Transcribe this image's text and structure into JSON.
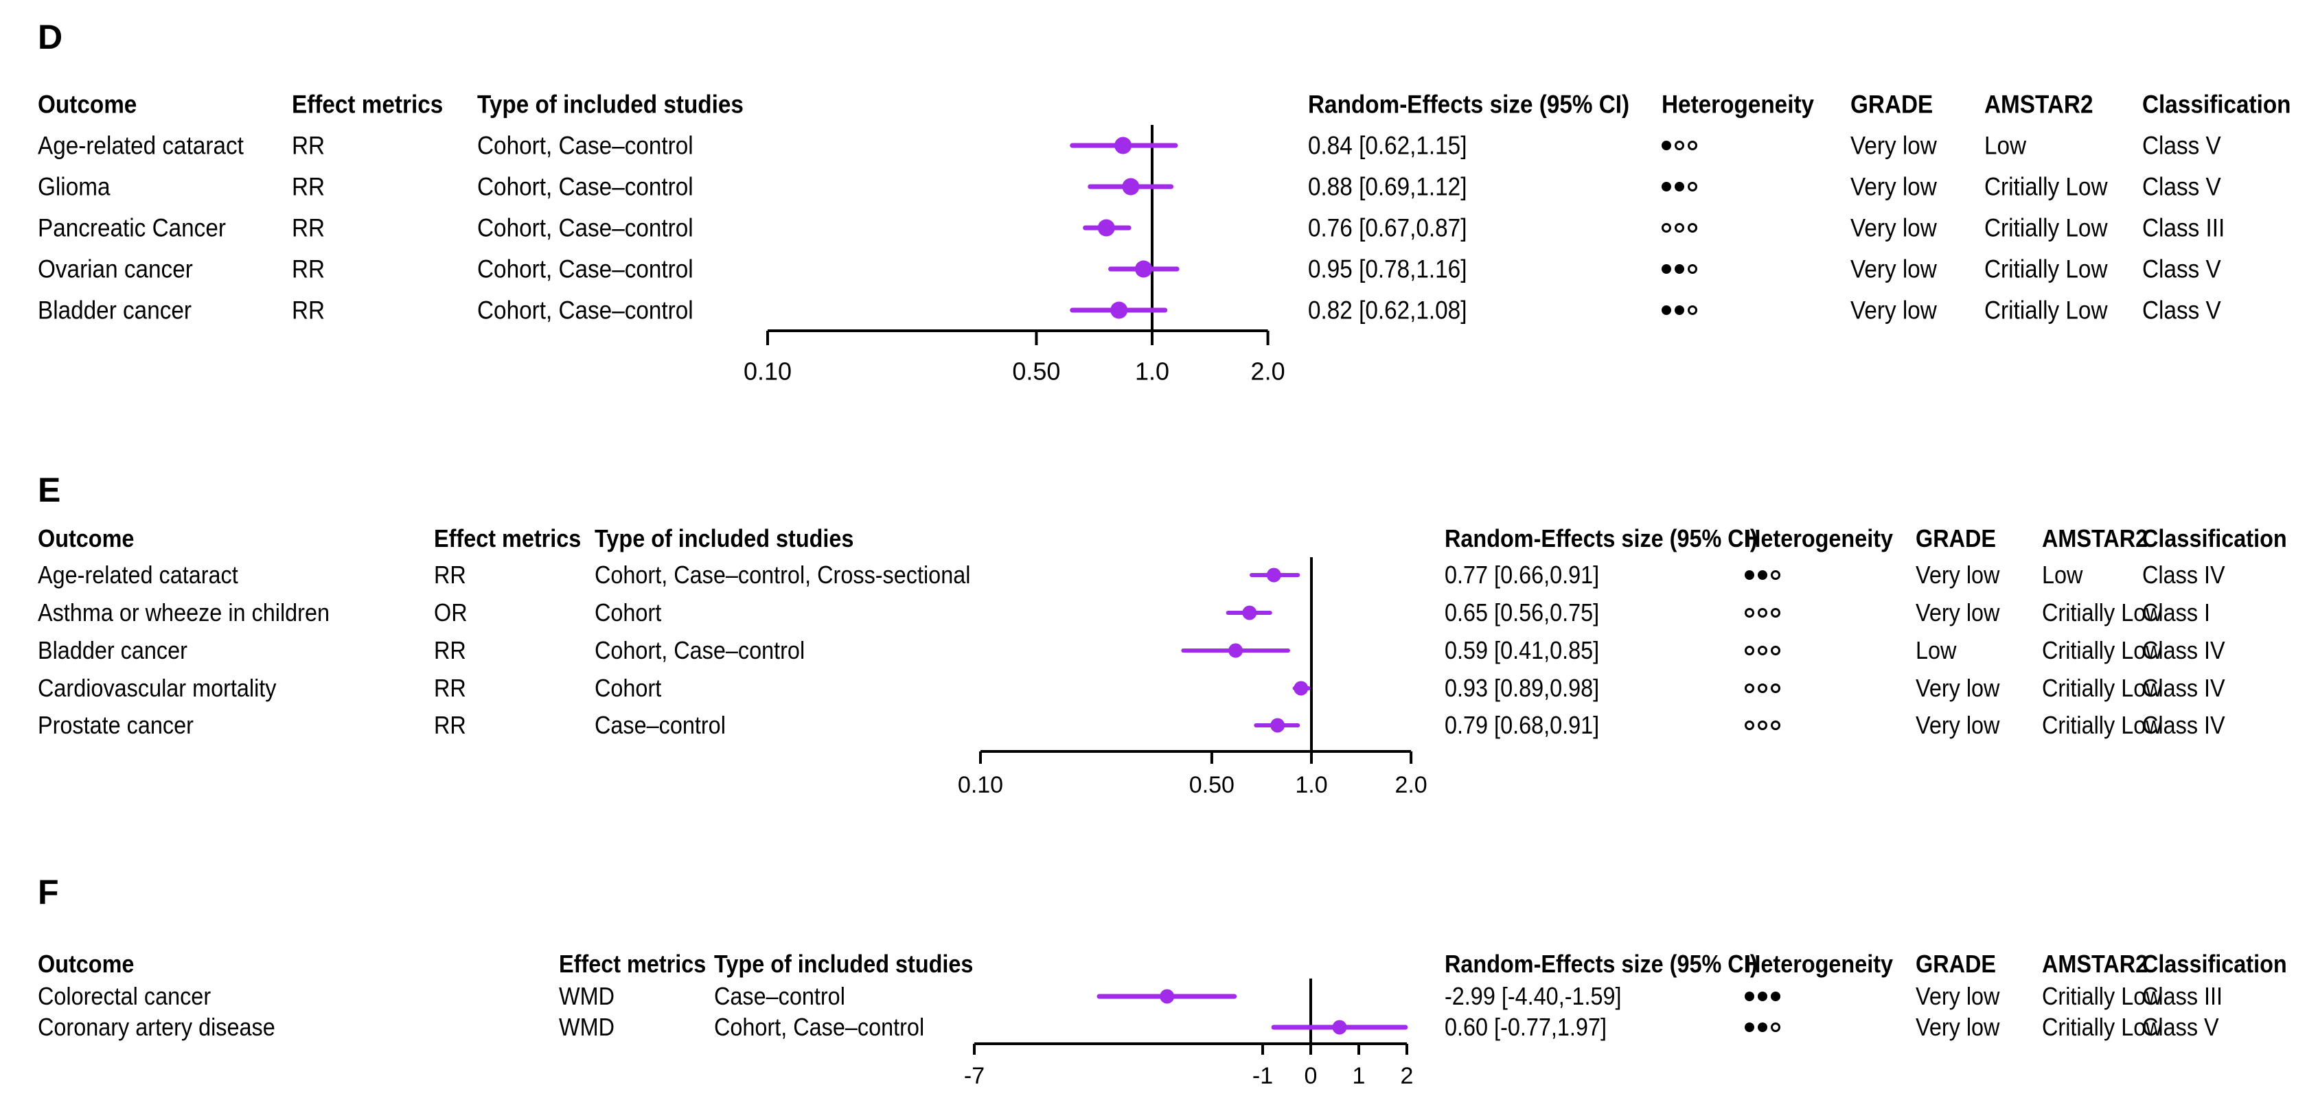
{
  "colors": {
    "marker": "#A02BE8",
    "text": "#000000"
  },
  "chart_data": [
    {
      "type": "forest",
      "panel": "D",
      "scale": "log",
      "axis_ticks": [
        "0.10",
        "0.50",
        "1.0",
        "2.0"
      ],
      "axis_tick_values": [
        0.1,
        0.5,
        1.0,
        2.0
      ],
      "ref_line": 1.0,
      "headers": {
        "outcome": "Outcome",
        "effect": "Effect metrics",
        "types": "Type of included studies",
        "re": "Random-Effects size (95% CI)",
        "het": "Heterogeneity",
        "grade": "GRADE",
        "amstar": "AMSTAR2",
        "class": "Classification"
      },
      "rows": [
        {
          "outcome": "Age-related cataract",
          "effect": "RR",
          "types": "Cohort, Case–control",
          "estimate": 0.84,
          "ci_low": 0.62,
          "ci_high": 1.15,
          "re": "0.84 [0.62,1.15]",
          "het": "●○○",
          "grade": "Very low",
          "amstar": "Low",
          "class": "Class V"
        },
        {
          "outcome": "Glioma",
          "effect": "RR",
          "types": "Cohort, Case–control",
          "estimate": 0.88,
          "ci_low": 0.69,
          "ci_high": 1.12,
          "re": "0.88 [0.69,1.12]",
          "het": "●●○",
          "grade": "Very low",
          "amstar": "Critially Low",
          "class": "Class V"
        },
        {
          "outcome": "Pancreatic Cancer",
          "effect": "RR",
          "types": "Cohort, Case–control",
          "estimate": 0.76,
          "ci_low": 0.67,
          "ci_high": 0.87,
          "re": "0.76 [0.67,0.87]",
          "het": "○○○",
          "grade": "Very low",
          "amstar": "Critially Low",
          "class": "Class III"
        },
        {
          "outcome": "Ovarian cancer",
          "effect": "RR",
          "types": "Cohort, Case–control",
          "estimate": 0.95,
          "ci_low": 0.78,
          "ci_high": 1.16,
          "re": "0.95 [0.78,1.16]",
          "het": "●●○",
          "grade": "Very low",
          "amstar": "Critially Low",
          "class": "Class V"
        },
        {
          "outcome": "Bladder cancer",
          "effect": "RR",
          "types": "Cohort, Case–control",
          "estimate": 0.82,
          "ci_low": 0.62,
          "ci_high": 1.08,
          "re": "0.82 [0.62,1.08]",
          "het": "●●○",
          "grade": "Very low",
          "amstar": "Critially Low",
          "class": "Class V"
        }
      ]
    },
    {
      "type": "forest",
      "panel": "E",
      "scale": "log",
      "axis_ticks": [
        "0.10",
        "0.50",
        "1.0",
        "2.0"
      ],
      "axis_tick_values": [
        0.1,
        0.5,
        1.0,
        2.0
      ],
      "ref_line": 1.0,
      "headers": {
        "outcome": "Outcome",
        "effect": "Effect metrics",
        "types": "Type of included studies",
        "re": "Random-Effects size (95% CI)",
        "het": "Heterogeneity",
        "grade": "GRADE",
        "amstar": "AMSTAR2",
        "class": "Classification"
      },
      "rows": [
        {
          "outcome": "Age-related cataract",
          "effect": "RR",
          "types": "Cohort, Case–control, Cross-sectional",
          "estimate": 0.77,
          "ci_low": 0.66,
          "ci_high": 0.91,
          "re": "0.77 [0.66,0.91]",
          "het": "●●○",
          "grade": "Very low",
          "amstar": "Low",
          "class": "Class IV"
        },
        {
          "outcome": "Asthma or wheeze in children",
          "effect": "OR",
          "types": "Cohort",
          "estimate": 0.65,
          "ci_low": 0.56,
          "ci_high": 0.75,
          "re": "0.65 [0.56,0.75]",
          "het": "○○○",
          "grade": "Very low",
          "amstar": "Critially Low",
          "class": "Class I"
        },
        {
          "outcome": "Bladder cancer",
          "effect": "RR",
          "types": "Cohort, Case–control",
          "estimate": 0.59,
          "ci_low": 0.41,
          "ci_high": 0.85,
          "re": "0.59 [0.41,0.85]",
          "het": "○○○",
          "grade": "Low",
          "amstar": "Critially Low",
          "class": "Class IV"
        },
        {
          "outcome": "Cardiovascular mortality",
          "effect": "RR",
          "types": "Cohort",
          "estimate": 0.93,
          "ci_low": 0.89,
          "ci_high": 0.98,
          "re": "0.93 [0.89,0.98]",
          "het": "○○○",
          "grade": "Very low",
          "amstar": "Critially Low",
          "class": "Class IV"
        },
        {
          "outcome": "Prostate cancer",
          "effect": "RR",
          "types": "Case–control",
          "estimate": 0.79,
          "ci_low": 0.68,
          "ci_high": 0.91,
          "re": "0.79 [0.68,0.91]",
          "het": "○○○",
          "grade": "Very low",
          "amstar": "Critially Low",
          "class": "Class IV"
        }
      ]
    },
    {
      "type": "forest",
      "panel": "F",
      "scale": "linear",
      "axis_ticks": [
        "-7",
        "-1",
        "0",
        "1",
        "2"
      ],
      "axis_tick_values": [
        -7,
        -1,
        0,
        1,
        2
      ],
      "ref_line": 0,
      "headers": {
        "outcome": "Outcome",
        "effect": "Effect metrics",
        "types": "Type of included studies",
        "re": "Random-Effects size (95% CI)",
        "het": "Heterogeneity",
        "grade": "GRADE",
        "amstar": "AMSTAR2",
        "class": "Classification"
      },
      "rows": [
        {
          "outcome": "Colorectal cancer",
          "effect": "WMD",
          "types": "Case–control",
          "estimate": -2.99,
          "ci_low": -4.4,
          "ci_high": -1.59,
          "re": "-2.99 [-4.40,-1.59]",
          "het": "●●●",
          "grade": "Very low",
          "amstar": "Critially Low",
          "class": "Class III"
        },
        {
          "outcome": "Coronary artery disease",
          "effect": "WMD",
          "types": "Cohort, Case–control",
          "estimate": 0.6,
          "ci_low": -0.77,
          "ci_high": 1.97,
          "re": "0.60 [-0.77,1.97]",
          "het": "●●○",
          "grade": "Very low",
          "amstar": "Critially Low",
          "class": "Class V"
        }
      ]
    }
  ]
}
